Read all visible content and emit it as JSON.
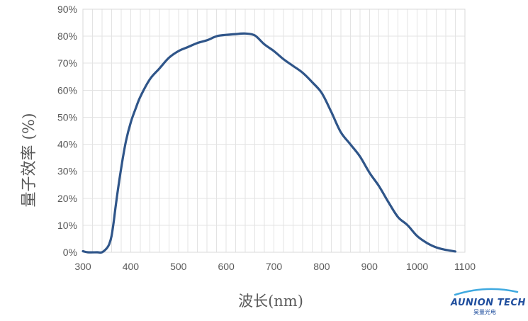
{
  "chart_data": {
    "type": "line",
    "xlabel": "波长(nm)",
    "ylabel": "量子效率 (%)",
    "xlim": [
      300,
      1100
    ],
    "ylim": [
      0,
      90
    ],
    "xticks": [
      300,
      400,
      500,
      600,
      700,
      800,
      900,
      1000,
      1100
    ],
    "yticks": [
      0,
      10,
      20,
      30,
      40,
      50,
      60,
      70,
      80,
      90
    ],
    "yticklabels": [
      "0%",
      "10%",
      "20%",
      "30%",
      "40%",
      "50%",
      "60%",
      "70%",
      "80%",
      "90%"
    ],
    "grid": true,
    "series": [
      {
        "color": "#2f5589",
        "x": [
          300,
          310,
          330,
          340,
          350,
          355,
          360,
          365,
          370,
          380,
          390,
          400,
          410,
          420,
          440,
          460,
          480,
          500,
          520,
          540,
          560,
          580,
          600,
          620,
          640,
          660,
          680,
          700,
          720,
          740,
          760,
          780,
          800,
          820,
          840,
          860,
          880,
          900,
          920,
          940,
          960,
          980,
          1000,
          1020,
          1040,
          1060,
          1080
        ],
        "y": [
          0.4,
          0,
          0,
          0,
          1.5,
          3,
          6,
          12,
          19,
          31,
          41,
          48,
          53,
          57.5,
          64,
          68,
          72,
          74.5,
          76,
          77.5,
          78.5,
          80,
          80.5,
          80.8,
          81,
          80.3,
          77,
          74.5,
          71.5,
          69,
          66.5,
          63,
          59,
          52,
          44.5,
          40,
          35.5,
          29.5,
          24.5,
          18.5,
          13,
          10,
          6,
          3.5,
          1.8,
          0.9,
          0.3
        ]
      }
    ]
  },
  "logo": {
    "name": "AUNION TECH",
    "subtitle": "昊量光电"
  }
}
